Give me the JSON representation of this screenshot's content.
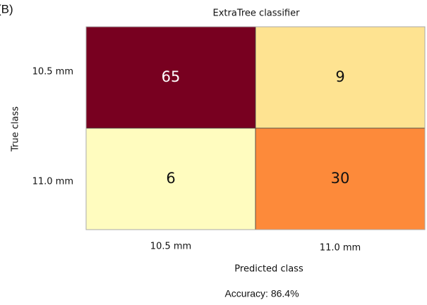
{
  "chart_data": {
    "type": "heatmap",
    "panel_label": "(B)",
    "title": "ExtraTree classifier",
    "x_label": "Predicted class",
    "y_label": "True class",
    "x_categories": [
      "10.5 mm",
      "11.0 mm"
    ],
    "y_categories": [
      "10.5 mm",
      "11.0 mm"
    ],
    "values": [
      [
        65,
        9
      ],
      [
        6,
        30
      ]
    ],
    "colors": [
      [
        "#780020",
        "#fee391"
      ],
      [
        "#fffcbf",
        "#fd8a3a"
      ]
    ],
    "annotation": "Accuracy: 86.4%"
  }
}
